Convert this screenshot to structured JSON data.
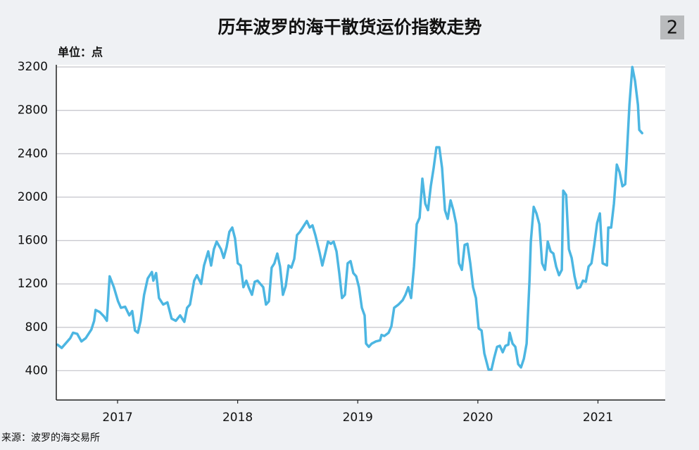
{
  "chart_data": {
    "type": "line",
    "title": "历年波罗的海干散货运价指数走势",
    "badge": "2",
    "unit_label": "单位：点",
    "source": "来源：波罗的海交易所",
    "xlim": [
      2016.49,
      2021.56
    ],
    "xticks": [
      2017,
      2018,
      2019,
      2020,
      2021
    ],
    "ylim": [
      130,
      3220
    ],
    "yticks": [
      400,
      800,
      1200,
      1600,
      2000,
      2400,
      2800,
      3200
    ],
    "grid": true,
    "x": [
      2016.5,
      2016.535,
      2016.606,
      2016.629,
      2016.664,
      2016.699,
      2016.735,
      2016.782,
      2016.805,
      2016.817,
      2016.852,
      2016.887,
      2016.911,
      2016.934,
      2016.969,
      2017.004,
      2017.028,
      2017.063,
      2017.098,
      2017.122,
      2017.145,
      2017.169,
      2017.192,
      2017.221,
      2017.251,
      2017.286,
      2017.298,
      2017.321,
      2017.345,
      2017.38,
      2017.415,
      2017.45,
      2017.485,
      2017.521,
      2017.556,
      2017.579,
      2017.603,
      2017.638,
      2017.661,
      2017.696,
      2017.72,
      2017.755,
      2017.779,
      2017.802,
      2017.825,
      2017.861,
      2017.884,
      2017.908,
      2017.931,
      2017.955,
      2017.978,
      2018.001,
      2018.025,
      2018.048,
      2018.072,
      2018.095,
      2018.119,
      2018.142,
      2018.166,
      2018.189,
      2018.213,
      2018.236,
      2018.26,
      2018.283,
      2018.306,
      2018.33,
      2018.353,
      2018.377,
      2018.4,
      2018.424,
      2018.447,
      2018.471,
      2018.494,
      2018.518,
      2018.553,
      2018.576,
      2018.6,
      2018.623,
      2018.647,
      2018.682,
      2018.705,
      2018.729,
      2018.752,
      2018.776,
      2018.799,
      2018.823,
      2018.846,
      2018.869,
      2018.893,
      2018.916,
      2018.94,
      2018.963,
      2018.987,
      2019.01,
      2019.034,
      2019.057,
      2019.069,
      2019.092,
      2019.116,
      2019.151,
      2019.186,
      2019.198,
      2019.221,
      2019.257,
      2019.28,
      2019.303,
      2019.339,
      2019.374,
      2019.397,
      2019.421,
      2019.444,
      2019.468,
      2019.491,
      2019.515,
      2019.538,
      2019.562,
      2019.585,
      2019.608,
      2019.632,
      2019.655,
      2019.679,
      2019.702,
      2019.726,
      2019.749,
      2019.773,
      2019.796,
      2019.82,
      2019.843,
      2019.867,
      2019.89,
      2019.913,
      2019.937,
      2019.96,
      2019.984,
      2020.007,
      2020.031,
      2020.054,
      2020.089,
      2020.113,
      2020.136,
      2020.16,
      2020.183,
      2020.207,
      2020.23,
      2020.254,
      2020.265,
      2020.289,
      2020.312,
      2020.336,
      2020.359,
      2020.383,
      2020.406,
      2020.43,
      2020.441,
      2020.465,
      2020.488,
      2020.512,
      2020.535,
      2020.559,
      2020.582,
      2020.606,
      2020.629,
      2020.652,
      2020.676,
      2020.699,
      2020.711,
      2020.735,
      2020.758,
      2020.781,
      2020.805,
      2020.828,
      2020.852,
      2020.875,
      2020.899,
      2020.922,
      2020.946,
      2020.969,
      2020.993,
      2021.016,
      2021.039,
      2021.075,
      2021.086,
      2021.11,
      2021.133,
      2021.157,
      2021.18,
      2021.204,
      2021.227,
      2021.239,
      2021.262,
      2021.286,
      2021.309,
      2021.333,
      2021.344,
      2021.368
    ],
    "series": [
      {
        "color": "#4cb6e2",
        "values": [
          640,
          610,
          700,
          750,
          740,
          670,
          700,
          780,
          860,
          960,
          940,
          900,
          860,
          1270,
          1170,
          1040,
          980,
          990,
          910,
          950,
          770,
          750,
          860,
          1100,
          1250,
          1310,
          1230,
          1300,
          1070,
          1010,
          1030,
          880,
          860,
          910,
          850,
          980,
          1010,
          1230,
          1280,
          1200,
          1370,
          1500,
          1370,
          1520,
          1590,
          1520,
          1440,
          1540,
          1680,
          1720,
          1620,
          1390,
          1370,
          1170,
          1230,
          1160,
          1100,
          1220,
          1230,
          1200,
          1170,
          1010,
          1040,
          1350,
          1390,
          1480,
          1360,
          1100,
          1180,
          1370,
          1350,
          1430,
          1650,
          1680,
          1740,
          1780,
          1720,
          1740,
          1650,
          1490,
          1370,
          1480,
          1590,
          1570,
          1590,
          1500,
          1300,
          1070,
          1100,
          1390,
          1410,
          1300,
          1270,
          1170,
          980,
          910,
          650,
          620,
          650,
          670,
          680,
          730,
          720,
          750,
          810,
          980,
          1010,
          1050,
          1100,
          1170,
          1070,
          1360,
          1750,
          1810,
          2170,
          1940,
          1880,
          2100,
          2270,
          2460,
          2460,
          2270,
          1880,
          1800,
          1970,
          1880,
          1750,
          1390,
          1330,
          1560,
          1570,
          1390,
          1170,
          1070,
          790,
          770,
          560,
          410,
          410,
          520,
          620,
          630,
          570,
          630,
          640,
          750,
          650,
          620,
          460,
          430,
          510,
          650,
          1230,
          1590,
          1910,
          1850,
          1750,
          1390,
          1330,
          1590,
          1500,
          1480,
          1360,
          1280,
          1330,
          2060,
          2020,
          1520,
          1440,
          1270,
          1160,
          1170,
          1230,
          1220,
          1360,
          1390,
          1560,
          1760,
          1850,
          1390,
          1370,
          1720,
          1720,
          1940,
          2300,
          2230,
          2100,
          2120,
          2360,
          2850,
          3200,
          3070,
          2850,
          2620,
          2590
        ]
      }
    ]
  }
}
